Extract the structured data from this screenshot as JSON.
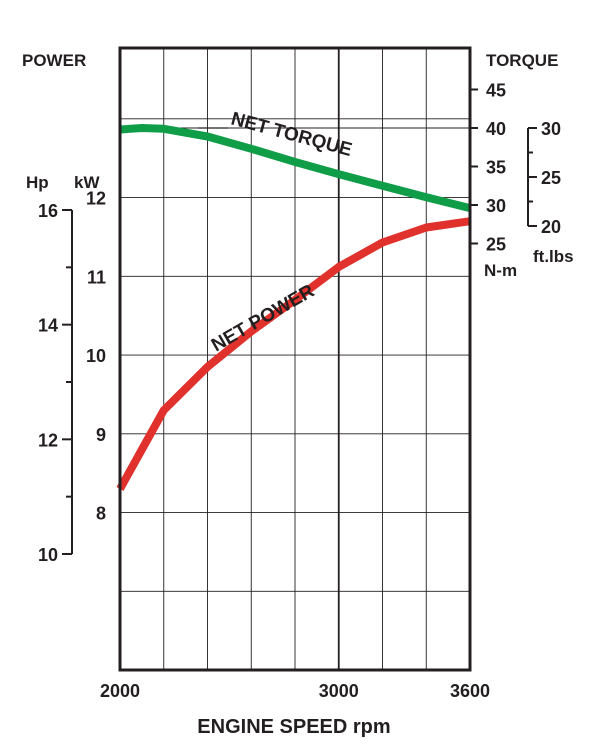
{
  "chart_data": {
    "type": "line",
    "title": "",
    "xlabel": "ENGINE SPEED rpm",
    "x_ticks": [
      "2000",
      "3000",
      "3600"
    ],
    "xlim": [
      2000,
      3600
    ],
    "left_axis": {
      "title": "POWER",
      "kw_unit": "kW",
      "hp_unit": "Hp",
      "kw_ticks": [
        "8",
        "9",
        "10",
        "11",
        "12"
      ],
      "hp_ticks": [
        "10",
        "12",
        "14",
        "16"
      ],
      "kw_range": [
        6.0,
        13.9
      ]
    },
    "right_axis": {
      "title": "TORQUE",
      "nm_unit": "N-m",
      "ftlbs_unit": "ft.lbs",
      "nm_ticks": [
        "25",
        "30",
        "35",
        "40",
        "45"
      ],
      "ftlbs_ticks": [
        "20",
        "25",
        "30"
      ]
    },
    "series": [
      {
        "name": "NET TORQUE",
        "axis": "torque_nm",
        "color": "#0f9d48",
        "x": [
          2000,
          2100,
          2200,
          2400,
          2600,
          2800,
          3000,
          3200,
          3400,
          3600
        ],
        "y": [
          39.8,
          40.0,
          39.9,
          38.9,
          37.3,
          35.6,
          34.0,
          32.5,
          31.0,
          29.6
        ]
      },
      {
        "name": "NET POWER",
        "axis": "power_kw",
        "color": "#e0312c",
        "x": [
          2000,
          2100,
          2200,
          2400,
          2600,
          2800,
          3000,
          3200,
          3400,
          3600
        ],
        "y": [
          8.3,
          8.8,
          9.3,
          9.85,
          10.3,
          10.7,
          11.12,
          11.43,
          11.62,
          11.7
        ]
      }
    ],
    "grid": true
  }
}
